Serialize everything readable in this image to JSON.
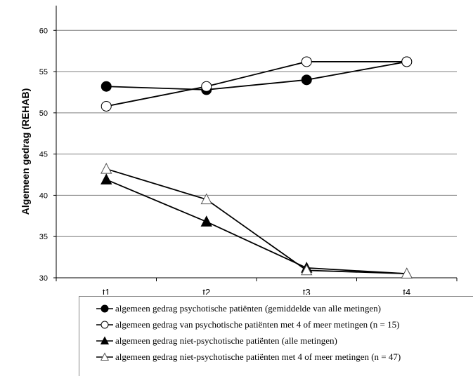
{
  "chart_data": {
    "type": "line",
    "categories": [
      "t1",
      "t2",
      "t3",
      "t4"
    ],
    "ylabel": "Algemeen gedrag (REHAB)",
    "xlabel": "",
    "ylim": [
      30,
      63
    ],
    "yticks": [
      30,
      35,
      40,
      45,
      50,
      55,
      60
    ],
    "grid": true,
    "legend_position": "bottom",
    "series": [
      {
        "name": "algemeen gedrag psychotische patiënten (gemiddelde van alle metingen)",
        "marker": "circle",
        "filled": true,
        "values": [
          53.2,
          52.8,
          54.0,
          56.2
        ]
      },
      {
        "name": "algemeen gedrag van psychotische patiënten met 4 of meer metingen (n = 15)",
        "marker": "circle",
        "filled": false,
        "values": [
          50.8,
          53.2,
          56.2,
          56.2
        ]
      },
      {
        "name": "algemeen gedrag niet-psychotische patiënten (alle metingen)",
        "marker": "triangle",
        "filled": true,
        "values": [
          41.9,
          36.8,
          31.2,
          30.5
        ]
      },
      {
        "name": "algemeen gedrag niet-psychotische patiënten met 4 of meer metingen (n = 47)",
        "marker": "triangle",
        "filled": false,
        "values": [
          43.2,
          39.5,
          30.9,
          30.5
        ]
      }
    ]
  }
}
